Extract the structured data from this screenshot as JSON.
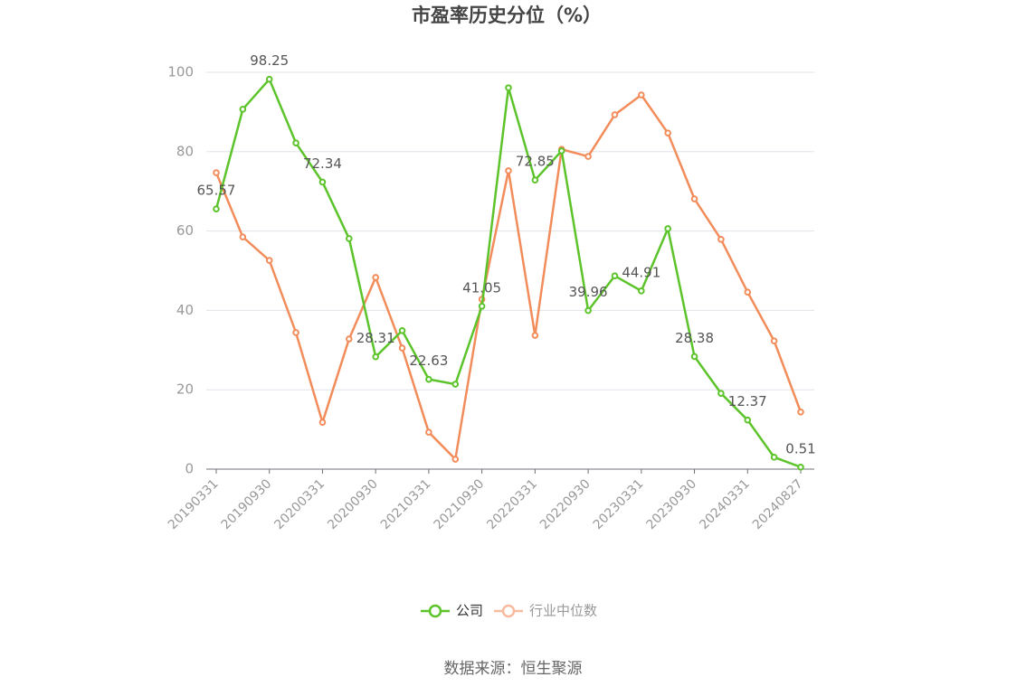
{
  "chart_data": {
    "type": "line",
    "title": "市盈率历史分位（%）",
    "categories": [
      "20190331",
      null,
      "20190930",
      null,
      "20200331",
      null,
      "20200930",
      null,
      "20210331",
      null,
      "20210930",
      null,
      "20220331",
      null,
      "20220930",
      null,
      "20230331",
      null,
      "20230930",
      null,
      "20240331",
      null,
      "20240827"
    ],
    "series": [
      {
        "name": "公司",
        "color": "#5cc42a",
        "values": [
          65.57,
          90.7,
          98.25,
          82.2,
          72.34,
          58.1,
          28.31,
          34.9,
          22.63,
          21.4,
          41.05,
          96.1,
          72.85,
          80.2,
          39.96,
          48.7,
          44.91,
          60.6,
          28.38,
          19.1,
          12.37,
          3.0,
          0.51
        ],
        "value_labels": [
          "65.57",
          null,
          "98.25",
          null,
          "72.34",
          null,
          "28.31",
          null,
          "22.63",
          null,
          "41.05",
          null,
          "72.85",
          null,
          "39.96",
          null,
          "44.91",
          null,
          "28.38",
          null,
          "12.37",
          null,
          "0.51"
        ]
      },
      {
        "name": "行业中位数",
        "color": "#f28c5a",
        "values": [
          74.7,
          58.5,
          52.6,
          34.4,
          11.8,
          32.8,
          48.3,
          30.5,
          9.3,
          2.5,
          42.8,
          75.2,
          33.7,
          80.6,
          78.8,
          89.3,
          94.3,
          84.7,
          68.1,
          57.9,
          44.6,
          32.3,
          14.4
        ]
      }
    ],
    "ylim": [
      0,
      100
    ],
    "yticks": [
      0,
      20,
      40,
      60,
      80,
      100
    ],
    "grid": true,
    "source": "数据来源：恒生聚源"
  }
}
